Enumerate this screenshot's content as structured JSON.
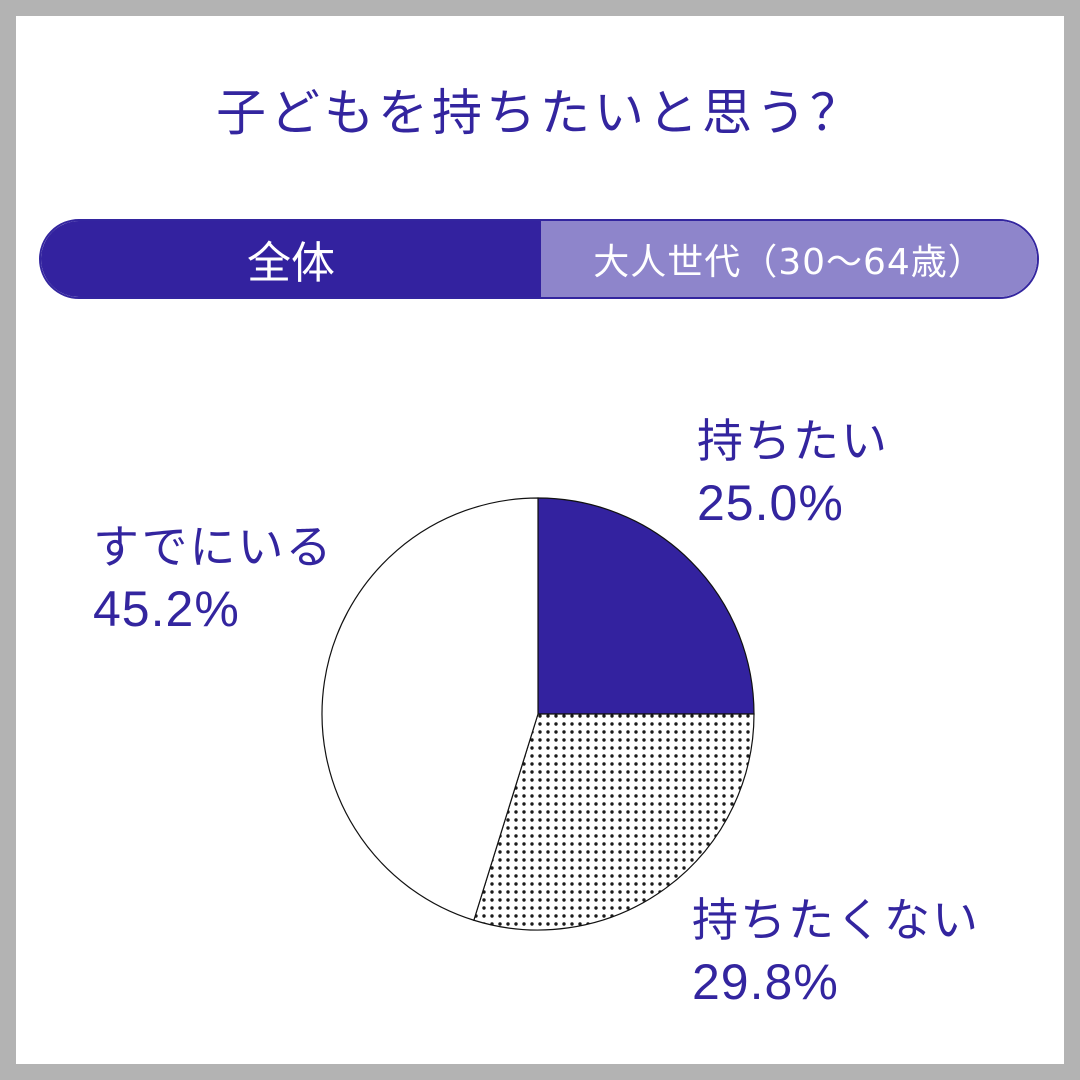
{
  "title": "子どもを持ちたいと思う？",
  "tabs": [
    {
      "label": "全体",
      "selected": true
    },
    {
      "label": "大人世代（30〜64歳）",
      "selected": false
    }
  ],
  "colors": {
    "accent": "#33229f",
    "accent_light": "#8e85cb",
    "frame": "#b3b3b3"
  },
  "chart_data": {
    "type": "pie",
    "start_angle_deg": 0,
    "direction": "clockwise",
    "slices": [
      {
        "label": "持ちたい",
        "value": 25.0,
        "value_label": "25.0%",
        "fill": "#33229f"
      },
      {
        "label": "持ちたくない",
        "value": 29.8,
        "value_label": "29.8%",
        "fill": "dots"
      },
      {
        "label": "すでにいる",
        "value": 45.2,
        "value_label": "45.2%",
        "fill": "#ffffff"
      }
    ]
  }
}
